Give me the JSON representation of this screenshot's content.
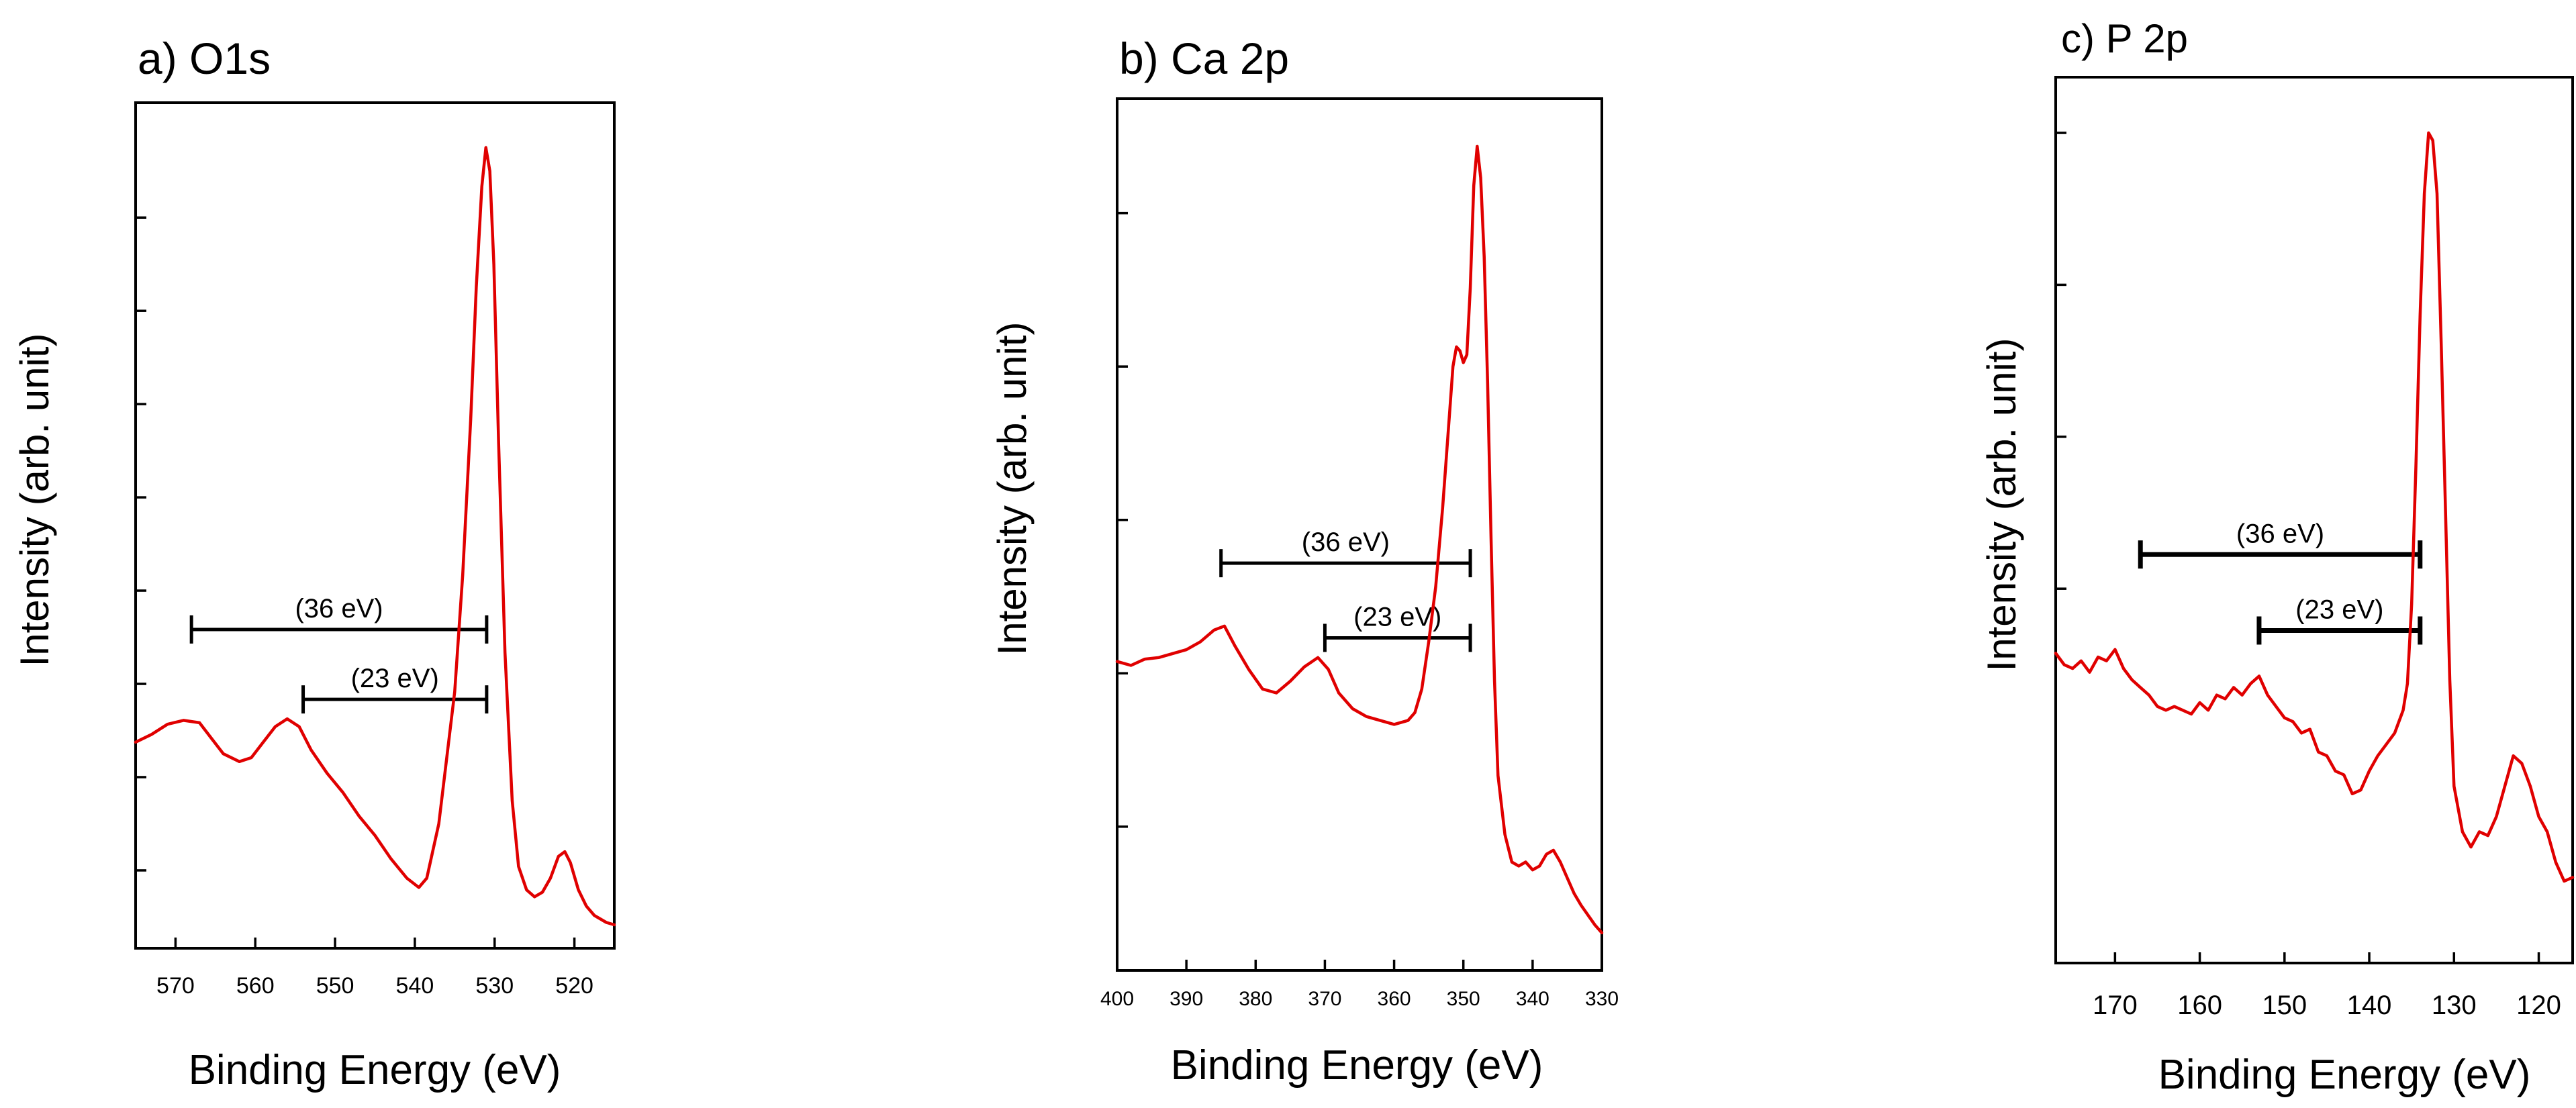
{
  "chart_data": [
    {
      "type": "line",
      "title": "a) O1s",
      "xlabel": "Binding Energy (eV)",
      "ylabel": "Intensity (arb. unit)",
      "xlim": [
        575,
        515
      ],
      "ylim": [
        0,
        100
      ],
      "x_ticks": [
        570,
        560,
        550,
        540,
        530,
        520
      ],
      "x_tick_labels": [
        "570",
        "560",
        "550",
        "540",
        "530",
        "520"
      ],
      "y_ticks": [
        7,
        19,
        31,
        43,
        55,
        67,
        79,
        91
      ],
      "series": [
        {
          "name": "O1s",
          "color": "#e00000",
          "x": [
            575,
            573,
            571,
            569,
            567,
            565.5,
            564,
            562,
            560.5,
            559,
            557.5,
            556,
            554.5,
            553,
            551,
            549,
            547,
            545,
            543,
            541,
            539.5,
            538.5,
            537,
            535,
            534,
            533,
            532.3,
            531.6,
            531.1,
            530.6,
            530.1,
            529.5,
            528.7,
            527.8,
            527,
            526,
            525,
            524,
            523,
            522,
            521.2,
            520.5,
            519.5,
            518.5,
            517.5,
            516,
            515
          ],
          "y": [
            23.5,
            24.5,
            25.8,
            26.3,
            26.0,
            24.0,
            22.0,
            21.0,
            21.5,
            23.5,
            25.5,
            26.5,
            25.5,
            22.5,
            19.5,
            17.0,
            14.0,
            11.5,
            8.5,
            6.0,
            4.8,
            6.0,
            13.0,
            30.0,
            45.0,
            65.0,
            82.0,
            95.0,
            100.0,
            97.0,
            85.0,
            62.0,
            35.0,
            16.0,
            7.5,
            4.5,
            3.6,
            4.2,
            6.0,
            8.8,
            9.4,
            8.0,
            4.5,
            2.4,
            1.2,
            0.3,
            0.0
          ]
        }
      ],
      "annotations": [
        {
          "text": "(36 eV)",
          "x_start": 568,
          "x_end": 531,
          "y": 38
        },
        {
          "text": "(23 eV)",
          "x_start": 554,
          "x_end": 531,
          "y": 29
        }
      ]
    },
    {
      "type": "line",
      "title": "b) Ca 2p",
      "xlabel": "Binding Energy (eV)",
      "ylabel": "Intensity (arb. unit)",
      "xlim": [
        400,
        330
      ],
      "ylim": [
        0,
        100
      ],
      "x_ticks": [
        400,
        390,
        380,
        370,
        360,
        350,
        340,
        330
      ],
      "x_tick_labels": [
        "400",
        "390",
        "380",
        "370",
        "360",
        "350",
        "340",
        "330"
      ],
      "y_ticks": [
        13.5,
        33,
        52.5,
        72,
        91.5
      ],
      "series": [
        {
          "name": "Ca 2p",
          "color": "#e00000",
          "x": [
            400,
            398,
            396,
            394,
            392,
            390,
            388,
            386,
            384.5,
            383,
            381,
            379,
            377,
            375,
            373,
            371,
            369.5,
            368,
            366,
            364,
            362,
            360,
            358,
            357,
            356,
            355,
            354,
            353,
            352,
            351.5,
            351,
            350.5,
            350,
            349.5,
            349,
            348.5,
            348,
            347.5,
            347,
            346.5,
            346,
            345.5,
            345,
            344,
            343,
            342,
            341,
            340,
            339,
            338,
            337,
            336,
            335,
            334,
            333,
            331,
            330
          ],
          "y": [
            34.5,
            34.0,
            34.8,
            35.0,
            35.5,
            36.0,
            37.0,
            38.5,
            39.0,
            36.5,
            33.5,
            31.0,
            30.5,
            32.0,
            33.8,
            35.0,
            33.5,
            30.5,
            28.5,
            27.5,
            27.0,
            26.5,
            27.0,
            28.0,
            31.0,
            37.0,
            44.0,
            54.0,
            66.0,
            72.0,
            74.5,
            74.0,
            72.5,
            73.5,
            82.0,
            95.0,
            100.0,
            96.0,
            86.0,
            70.0,
            50.0,
            32.0,
            20.0,
            12.5,
            9.0,
            8.5,
            9.0,
            8.0,
            8.5,
            10.0,
            10.5,
            9.0,
            7.0,
            5.0,
            3.5,
            1.0,
            0.0
          ]
        }
      ],
      "annotations": [
        {
          "text": "(36 eV)",
          "x_start": 385,
          "x_end": 349,
          "y": 47
        },
        {
          "text": "(23 eV)",
          "x_start": 370,
          "x_end": 349,
          "y": 37.5
        }
      ]
    },
    {
      "type": "line",
      "title": "c) P 2p",
      "xlabel": "Binding Energy (eV)",
      "ylabel": "Intensity (arb. unit)",
      "xlim": [
        177,
        116
      ],
      "ylim": [
        0,
        100
      ],
      "x_ticks": [
        170,
        160,
        150,
        140,
        130,
        120
      ],
      "x_tick_labels": [
        "170",
        "160",
        "150",
        "140",
        "130",
        "120"
      ],
      "y_ticks": [
        40,
        60,
        80,
        100
      ],
      "series": [
        {
          "name": "P 2p",
          "color": "#e00000",
          "x": [
            177,
            176,
            175,
            174,
            173,
            172,
            171,
            170,
            169,
            168,
            167,
            166,
            165,
            164,
            163,
            162,
            161,
            160,
            159,
            158,
            157,
            156,
            155,
            154,
            153,
            152,
            151,
            150,
            149,
            148,
            147,
            146,
            145,
            144,
            143,
            142,
            141,
            140,
            139,
            138,
            137,
            136,
            135.5,
            135,
            134.5,
            134,
            133.5,
            133,
            132.5,
            132,
            131.5,
            131,
            130.5,
            130,
            129,
            128,
            127,
            126,
            125,
            124,
            123,
            122,
            121,
            120,
            119,
            118,
            117,
            116
          ],
          "y": [
            31.5,
            30.0,
            29.5,
            30.5,
            29.0,
            31.0,
            30.5,
            32.0,
            29.5,
            28.0,
            27.0,
            26.0,
            24.5,
            24.0,
            24.5,
            24.0,
            23.5,
            25.0,
            24.0,
            26.0,
            25.5,
            27.0,
            26.0,
            27.5,
            28.5,
            26.0,
            24.5,
            23.0,
            22.5,
            21.0,
            21.5,
            18.5,
            18.0,
            16.0,
            15.5,
            13.0,
            13.5,
            16.0,
            18.0,
            19.5,
            21.0,
            24.0,
            27.5,
            38.0,
            56.0,
            76.0,
            92.0,
            100.0,
            99.0,
            92.0,
            72.0,
            50.0,
            28.0,
            14.0,
            8.0,
            6.0,
            8.0,
            7.5,
            10.0,
            14.0,
            18.0,
            17.0,
            14.0,
            10.0,
            8.0,
            4.0,
            1.5,
            2.0
          ]
        }
      ],
      "annotations": [
        {
          "text": "(36 eV)",
          "x_start": 167,
          "x_end": 134,
          "y": 44.5
        },
        {
          "text": "(23 eV)",
          "x_start": 153,
          "x_end": 134,
          "y": 34.5
        }
      ]
    }
  ]
}
